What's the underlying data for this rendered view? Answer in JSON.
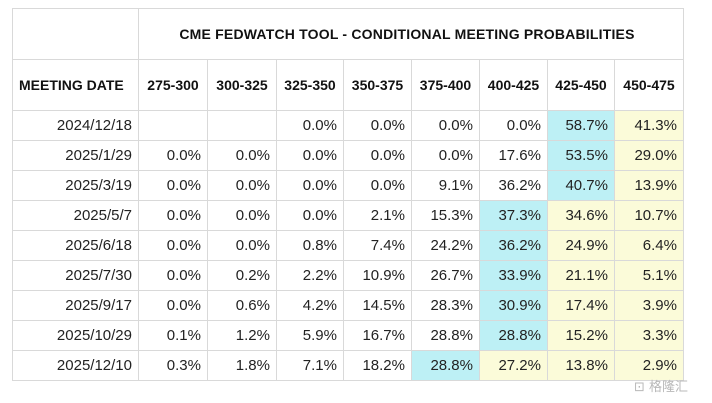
{
  "table": {
    "title": "CME FEDWATCH TOOL - CONDITIONAL MEETING PROBABILITIES",
    "meeting_date_header": "MEETING DATE",
    "columns": [
      "275-300",
      "300-325",
      "325-350",
      "350-375",
      "375-400",
      "400-425",
      "425-450",
      "450-475"
    ],
    "rows": [
      {
        "date": "2024/12/18",
        "values": [
          "",
          "",
          "0.0%",
          "0.0%",
          "0.0%",
          "0.0%",
          "58.7%",
          "41.3%"
        ]
      },
      {
        "date": "2025/1/29",
        "values": [
          "0.0%",
          "0.0%",
          "0.0%",
          "0.0%",
          "0.0%",
          "17.6%",
          "53.5%",
          "29.0%"
        ]
      },
      {
        "date": "2025/3/19",
        "values": [
          "0.0%",
          "0.0%",
          "0.0%",
          "0.0%",
          "9.1%",
          "36.2%",
          "40.7%",
          "13.9%"
        ]
      },
      {
        "date": "2025/5/7",
        "values": [
          "0.0%",
          "0.0%",
          "0.0%",
          "2.1%",
          "15.3%",
          "37.3%",
          "34.6%",
          "10.7%"
        ]
      },
      {
        "date": "2025/6/18",
        "values": [
          "0.0%",
          "0.0%",
          "0.8%",
          "7.4%",
          "24.2%",
          "36.2%",
          "24.9%",
          "6.4%"
        ]
      },
      {
        "date": "2025/7/30",
        "values": [
          "0.0%",
          "0.2%",
          "2.2%",
          "10.9%",
          "26.7%",
          "33.9%",
          "21.1%",
          "5.1%"
        ]
      },
      {
        "date": "2025/9/17",
        "values": [
          "0.0%",
          "0.6%",
          "4.2%",
          "14.5%",
          "28.3%",
          "30.9%",
          "17.4%",
          "3.9%"
        ]
      },
      {
        "date": "2025/10/29",
        "values": [
          "0.1%",
          "1.2%",
          "5.9%",
          "16.7%",
          "28.8%",
          "28.8%",
          "15.2%",
          "3.3%"
        ]
      },
      {
        "date": "2025/12/10",
        "values": [
          "0.3%",
          "1.8%",
          "7.1%",
          "18.2%",
          "28.8%",
          "27.2%",
          "13.8%",
          "2.9%"
        ]
      }
    ],
    "highlights": [
      {
        "row": 0,
        "cyan": [
          6
        ],
        "yellow": [
          7
        ]
      },
      {
        "row": 1,
        "cyan": [
          6
        ],
        "yellow": [
          7
        ]
      },
      {
        "row": 2,
        "cyan": [
          6
        ],
        "yellow": [
          7
        ]
      },
      {
        "row": 3,
        "cyan": [
          5
        ],
        "yellow": [
          6,
          7
        ]
      },
      {
        "row": 4,
        "cyan": [
          5
        ],
        "yellow": [
          6,
          7
        ]
      },
      {
        "row": 5,
        "cyan": [
          5
        ],
        "yellow": [
          6,
          7
        ]
      },
      {
        "row": 6,
        "cyan": [
          5
        ],
        "yellow": [
          6,
          7
        ]
      },
      {
        "row": 7,
        "cyan": [
          5
        ],
        "yellow": [
          6,
          7
        ]
      },
      {
        "row": 8,
        "cyan": [
          4
        ],
        "yellow": [
          5,
          6,
          7
        ]
      }
    ],
    "colors": {
      "highlight_cyan": "#bdf0f5",
      "highlight_yellow": "#fbfbd9",
      "border": "#d9d9d9"
    }
  },
  "watermark": {
    "text": "格隆汇"
  }
}
